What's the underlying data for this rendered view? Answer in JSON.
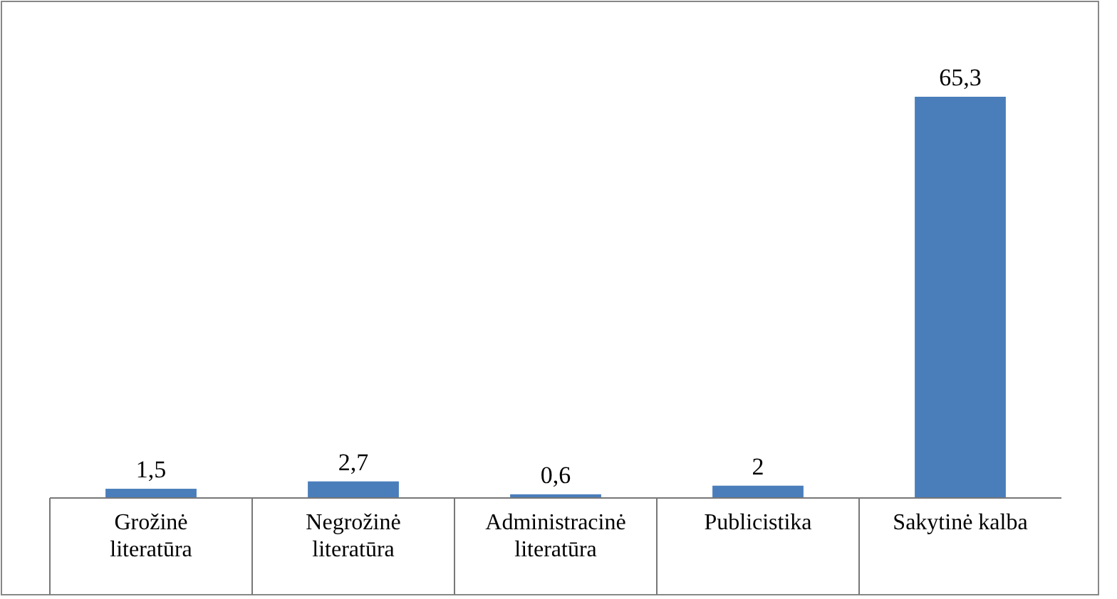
{
  "chart_data": {
    "type": "bar",
    "categories": [
      "Grožinė literatūra",
      "Negrožinė literatūra",
      "Administracinė literatūra",
      "Publicistika",
      "Sakytinė kalba"
    ],
    "values": [
      1.5,
      2.7,
      0.6,
      2,
      65.3
    ],
    "value_labels": [
      "1,5",
      "2,7",
      "0,6",
      "2",
      "65,3"
    ],
    "color": "#4a7ebb"
  }
}
